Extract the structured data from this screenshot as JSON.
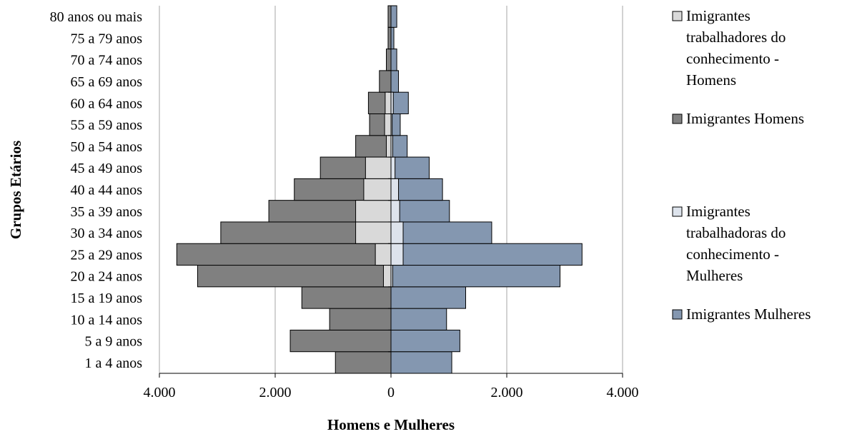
{
  "chart_data": {
    "type": "bar",
    "orientation": "horizontal",
    "layout": "population-pyramid",
    "title": "",
    "xlabel": "Homens e Mulheres",
    "ylabel": "Grupos Etários",
    "xlim": [
      -4000,
      4000
    ],
    "x_ticks": [
      -4000,
      -2000,
      0,
      2000,
      4000
    ],
    "x_tick_labels": [
      "4.000",
      "2.000",
      "0",
      "2.000",
      "4.000"
    ],
    "grid": "vertical",
    "legend_position": "right",
    "categories": [
      "1 a 4 anos",
      "5 a 9 anos",
      "10 a 14 anos",
      "15 a 19 anos",
      "20 a 24 anos",
      "25 a 29 anos",
      "30 a 34 anos",
      "35 a 39 anos",
      "40 a 44 anos",
      "45 a 49 anos",
      "50 a 54 anos",
      "55 a 59 anos",
      "60 a 64 anos",
      "65 a 69 anos",
      "70 a 74 anos",
      "75 a 79 anos",
      "80 anos ou mais"
    ],
    "series": [
      {
        "name": "Imigrantes Homens",
        "side": "left",
        "color": "#808080",
        "values": [
          -960,
          -1740,
          -1060,
          -1540,
          -3340,
          -3700,
          -2940,
          -2110,
          -1670,
          -1220,
          -610,
          -370,
          -390,
          -200,
          -80,
          -50,
          -50
        ]
      },
      {
        "name": "Imigrantes trabalhadores do conhecimento - Homens",
        "side": "left",
        "color": "#d9d9d9",
        "values": [
          0,
          0,
          0,
          0,
          -130,
          -270,
          -610,
          -610,
          -470,
          -440,
          -80,
          -110,
          -100,
          0,
          0,
          0,
          0
        ]
      },
      {
        "name": "Imigrantes Mulheres",
        "side": "right",
        "color": "#8497b0",
        "values": [
          1050,
          1190,
          960,
          1290,
          2920,
          3300,
          1740,
          1010,
          890,
          660,
          280,
          160,
          300,
          130,
          100,
          50,
          100
        ]
      },
      {
        "name": "Imigrantes trabalhadoras do conhecimento - Mulheres",
        "side": "right",
        "color": "#dde3ec",
        "values": [
          0,
          0,
          0,
          0,
          30,
          210,
          210,
          150,
          130,
          70,
          30,
          20,
          40,
          0,
          0,
          0,
          0
        ]
      }
    ],
    "legend": [
      {
        "lines": [
          "Imigrantes",
          "trabalhadores do",
          "conhecimento -",
          "Homens"
        ],
        "color": "#d9d9d9"
      },
      {
        "lines": [
          "Imigrantes Homens"
        ],
        "color": "#808080"
      },
      {
        "lines": [
          "Imigrantes",
          "trabalhadoras do",
          "conhecimento -",
          "Mulheres"
        ],
        "color": "#dde3ec"
      },
      {
        "lines": [
          "Imigrantes Mulheres"
        ],
        "color": "#8497b0"
      }
    ]
  }
}
